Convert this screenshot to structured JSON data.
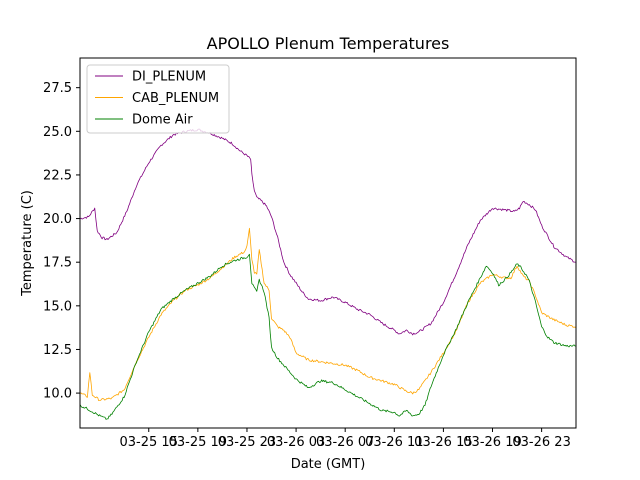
{
  "chart_data": {
    "type": "line",
    "title": "APOLLO Plenum Temperatures",
    "xlabel": "Date (GMT)",
    "ylabel": "Temperature (C)",
    "xlim_hours": [
      9.4,
      49.8
    ],
    "ylim": [
      8.0,
      29.2
    ],
    "x_ticks": [
      {
        "hours": 15,
        "label": "03-25 15"
      },
      {
        "hours": 19,
        "label": "03-25 19"
      },
      {
        "hours": 23,
        "label": "03-25 23"
      },
      {
        "hours": 27,
        "label": "03-26 03"
      },
      {
        "hours": 31,
        "label": "03-26 07"
      },
      {
        "hours": 35,
        "label": "03-26 11"
      },
      {
        "hours": 39,
        "label": "03-26 15"
      },
      {
        "hours": 43,
        "label": "03-26 19"
      },
      {
        "hours": 47,
        "label": "03-26 23"
      }
    ],
    "y_ticks": [
      {
        "value": 10.0,
        "label": "10.0"
      },
      {
        "value": 12.5,
        "label": "12.5"
      },
      {
        "value": 15.0,
        "label": "15.0"
      },
      {
        "value": 17.5,
        "label": "17.5"
      },
      {
        "value": 20.0,
        "label": "20.0"
      },
      {
        "value": 22.5,
        "label": "22.5"
      },
      {
        "value": 25.0,
        "label": "25.0"
      },
      {
        "value": 27.5,
        "label": "27.5"
      }
    ],
    "grid": false,
    "legend_position": "top-left",
    "series": [
      {
        "name": "DI_PLENUM",
        "color": "#800080",
        "x_hours": [
          9.4,
          10.1,
          10.6,
          10.8,
          11.2,
          11.6,
          12.4,
          13.2,
          14.0,
          15.0,
          16.0,
          17.0,
          18.0,
          19.0,
          20.0,
          21.0,
          21.8,
          22.4,
          22.8,
          23.0,
          23.3,
          23.4,
          23.6,
          23.8,
          24.2,
          24.6,
          25.0,
          25.5,
          26.0,
          26.5,
          27.0,
          27.5,
          28.0,
          29.0,
          30.0,
          31.0,
          32.0,
          33.0,
          34.0,
          35.0,
          35.4,
          36.0,
          36.5,
          37.0,
          38.0,
          39.0,
          40.0,
          41.0,
          42.0,
          43.0,
          44.0,
          44.8,
          45.2,
          45.5,
          46.0,
          46.5,
          47.0,
          48.0,
          49.0,
          49.8
        ],
        "values": [
          20.0,
          20.1,
          20.6,
          19.3,
          18.9,
          18.8,
          19.2,
          20.4,
          21.9,
          23.2,
          24.2,
          24.8,
          25.0,
          25.1,
          24.9,
          24.6,
          24.3,
          23.9,
          23.7,
          23.6,
          23.4,
          22.5,
          21.6,
          21.2,
          21.0,
          20.7,
          20.1,
          18.9,
          17.5,
          16.8,
          16.3,
          15.8,
          15.4,
          15.3,
          15.5,
          15.2,
          14.8,
          14.5,
          14.0,
          13.6,
          13.4,
          13.6,
          13.4,
          13.5,
          14.0,
          15.2,
          16.8,
          18.5,
          19.9,
          20.6,
          20.5,
          20.4,
          20.6,
          21.0,
          20.8,
          20.5,
          19.6,
          18.4,
          17.8,
          17.5
        ]
      },
      {
        "name": "CAB_PLENUM",
        "color": "#ffa500",
        "x_hours": [
          9.4,
          10.0,
          10.2,
          10.4,
          10.6,
          11.0,
          12.0,
          13.0,
          14.0,
          15.0,
          16.0,
          17.0,
          18.0,
          19.0,
          20.0,
          21.0,
          22.0,
          22.8,
          23.0,
          23.2,
          23.4,
          23.6,
          23.8,
          24.0,
          24.4,
          24.8,
          25.0,
          25.5,
          26.0,
          26.5,
          27.0,
          28.0,
          29.0,
          30.0,
          31.0,
          32.0,
          33.0,
          34.0,
          35.0,
          36.0,
          36.5,
          37.0,
          38.0,
          39.0,
          40.0,
          41.0,
          42.0,
          43.0,
          44.0,
          44.5,
          45.0,
          45.5,
          46.0,
          46.5,
          47.0,
          48.0,
          49.0,
          49.8
        ],
        "values": [
          10.0,
          9.8,
          11.2,
          9.9,
          9.8,
          9.6,
          9.7,
          10.2,
          11.8,
          13.2,
          14.5,
          15.3,
          15.9,
          16.2,
          16.6,
          17.2,
          17.8,
          18.1,
          18.4,
          19.4,
          17.7,
          16.9,
          16.8,
          18.2,
          16.3,
          15.9,
          14.3,
          13.8,
          13.6,
          13.2,
          12.3,
          11.9,
          11.8,
          11.7,
          11.6,
          11.3,
          10.9,
          10.7,
          10.5,
          10.1,
          10.0,
          10.2,
          11.2,
          12.3,
          13.5,
          15.2,
          16.3,
          16.8,
          16.6,
          16.6,
          17.3,
          16.7,
          16.4,
          15.6,
          14.6,
          14.2,
          13.9,
          13.8
        ]
      },
      {
        "name": "Dome Air",
        "color": "#008000",
        "x_hours": [
          9.4,
          10.0,
          11.0,
          11.6,
          12.0,
          13.0,
          14.0,
          15.0,
          16.0,
          17.0,
          18.0,
          19.0,
          20.0,
          21.0,
          22.0,
          23.0,
          23.2,
          23.4,
          23.6,
          23.8,
          24.0,
          24.4,
          24.8,
          25.0,
          25.5,
          26.0,
          27.0,
          28.0,
          29.0,
          30.0,
          31.0,
          32.0,
          33.0,
          34.0,
          35.0,
          35.4,
          36.0,
          36.5,
          37.0,
          37.5,
          38.0,
          39.0,
          40.0,
          41.0,
          42.0,
          42.5,
          43.0,
          43.5,
          44.0,
          44.5,
          45.0,
          45.3,
          45.8,
          46.0,
          46.5,
          47.0,
          47.5,
          48.0,
          49.0,
          49.8
        ],
        "values": [
          9.3,
          9.1,
          8.7,
          8.5,
          8.8,
          9.8,
          11.8,
          13.5,
          14.8,
          15.4,
          15.9,
          16.3,
          16.7,
          17.3,
          17.6,
          17.8,
          18.0,
          16.3,
          16.0,
          15.8,
          16.5,
          15.8,
          14.3,
          12.6,
          12.0,
          11.6,
          10.8,
          10.3,
          10.7,
          10.6,
          10.2,
          9.8,
          9.4,
          9.0,
          8.9,
          8.7,
          9.0,
          8.7,
          8.8,
          9.3,
          10.4,
          12.2,
          13.6,
          15.2,
          16.6,
          17.3,
          16.9,
          16.2,
          16.5,
          16.9,
          17.4,
          17.2,
          16.7,
          16.4,
          15.2,
          13.8,
          13.2,
          12.9,
          12.7,
          12.7
        ]
      }
    ]
  }
}
